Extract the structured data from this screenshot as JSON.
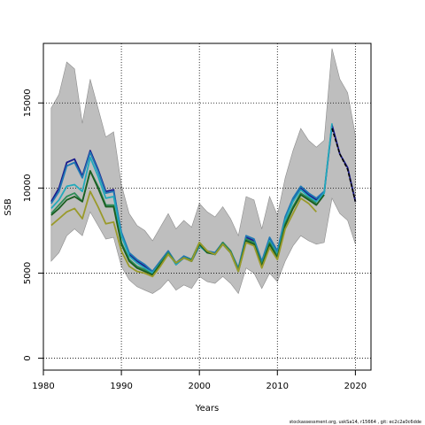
{
  "chart_data": {
    "type": "line",
    "xlabel": "Years",
    "ylabel": "SSB",
    "xlim": [
      1980,
      2022
    ],
    "ylim": [
      -700,
      18500
    ],
    "x_ticks": [
      1980,
      1990,
      2000,
      2010,
      2020
    ],
    "y_ticks": [
      0,
      5000,
      10000,
      15000
    ],
    "grid": "dotted",
    "footer": "stockassessment.org, uskSa14, r15664 , git: ec2c2a0c6dde",
    "band": {
      "color": "#bebebe",
      "x": [
        1981,
        1982,
        1983,
        1984,
        1985,
        1986,
        1987,
        1988,
        1989,
        1990,
        1991,
        1992,
        1993,
        1994,
        1995,
        1996,
        1997,
        1998,
        1999,
        2000,
        2001,
        2002,
        2003,
        2004,
        2005,
        2006,
        2007,
        2008,
        2009,
        2010,
        2011,
        2012,
        2013,
        2014,
        2015,
        2016,
        2017,
        2018,
        2019,
        2020
      ],
      "lower": [
        5700,
        6200,
        7200,
        7600,
        7200,
        8600,
        7800,
        7000,
        7100,
        5400,
        4600,
        4200,
        4000,
        3800,
        4100,
        4600,
        4000,
        4300,
        4100,
        4800,
        4500,
        4400,
        4800,
        4400,
        3800,
        5300,
        5000,
        4100,
        5000,
        4500,
        5700,
        6600,
        7200,
        6900,
        6700,
        6800,
        9400,
        8500,
        8100,
        6700
      ],
      "upper": [
        14700,
        15500,
        17400,
        17000,
        13800,
        16400,
        14700,
        13000,
        13300,
        10200,
        8500,
        7800,
        7500,
        6900,
        7700,
        8500,
        7600,
        8100,
        7700,
        9100,
        8600,
        8300,
        8900,
        8200,
        7200,
        9500,
        9300,
        7600,
        9500,
        8400,
        10600,
        12200,
        13500,
        12800,
        12400,
        12800,
        18200,
        16400,
        15600,
        13100
      ]
    },
    "series": [
      {
        "color": "#1c1c8c",
        "x": [
          1981,
          1982,
          1983,
          1984,
          1985,
          1986,
          1987,
          1988,
          1989,
          1990,
          1991,
          1992,
          1993,
          1994,
          1995,
          1996,
          1997,
          1998,
          1999,
          2000,
          2001,
          2002,
          2003,
          2004,
          2005,
          2006,
          2007,
          2008,
          2009,
          2010,
          2011,
          2012,
          2013,
          2014,
          2015,
          2016,
          2017,
          2018,
          2019,
          2020
        ],
        "values": [
          9200,
          10000,
          11500,
          11700,
          10700,
          12200,
          11100,
          9800,
          9900,
          7200,
          6100,
          5700,
          5400,
          5100,
          5700,
          6300,
          5500,
          5900,
          5700,
          6600,
          6300,
          6100,
          6800,
          6300,
          5200,
          7100,
          6900,
          5600,
          7000,
          6100,
          8100,
          9300,
          10000,
          9600,
          9300,
          9700,
          13700,
          12000,
          11200,
          9200
        ]
      },
      {
        "color": "#1f78b4",
        "x": [
          1981,
          1982,
          1983,
          1984,
          1985,
          1986,
          1987,
          1988,
          1989,
          1990,
          1991,
          1992,
          1993,
          1994,
          1995,
          1996,
          1997,
          1998,
          1999,
          2000,
          2001,
          2002,
          2003,
          2004,
          2005,
          2006,
          2007,
          2008,
          2009,
          2010,
          2011,
          2012,
          2013,
          2014,
          2015,
          2016
        ],
        "values": [
          9100,
          9800,
          11300,
          11500,
          10600,
          12100,
          11000,
          9700,
          9800,
          7400,
          6200,
          5800,
          5500,
          5100,
          5700,
          6300,
          5600,
          6000,
          5800,
          6700,
          6300,
          6200,
          6800,
          6300,
          5300,
          7200,
          7000,
          5700,
          7100,
          6300,
          8300,
          9400,
          10100,
          9700,
          9400,
          9800
        ]
      },
      {
        "color": "#22aabb",
        "x": [
          1981,
          1982,
          1983,
          1984,
          1985,
          1986,
          1987,
          1988,
          1989,
          1990,
          1991,
          1992,
          1993,
          1994,
          1995,
          1996,
          1997,
          1998,
          1999,
          2000,
          2001,
          2002,
          2003,
          2004,
          2005,
          2006,
          2007,
          2008,
          2009,
          2010,
          2011,
          2012,
          2013,
          2014,
          2015,
          2016,
          2017
        ],
        "values": [
          8800,
          9300,
          10100,
          10200,
          9800,
          11800,
          10700,
          9400,
          9500,
          7200,
          6000,
          5600,
          5300,
          5000,
          5600,
          6200,
          5500,
          5900,
          5700,
          6600,
          6200,
          6100,
          6700,
          6200,
          5200,
          7000,
          6800,
          5500,
          6900,
          6100,
          8100,
          9200,
          9900,
          9500,
          9200,
          9700,
          13800
        ]
      },
      {
        "color": "#2e8b57",
        "x": [
          1981,
          1982,
          1983,
          1984,
          1985,
          1986,
          1987,
          1988,
          1989,
          1990,
          1991,
          1992,
          1993,
          1994,
          1995,
          1996,
          1997,
          1998,
          1999,
          2000,
          2001,
          2002,
          2003,
          2004,
          2005,
          2006,
          2007,
          2008,
          2009,
          2010,
          2011,
          2012,
          2013,
          2014,
          2015
        ],
        "values": [
          8500,
          9000,
          9500,
          9700,
          9200,
          11000,
          10100,
          9000,
          9000,
          6800,
          5800,
          5400,
          5200,
          4900,
          5600,
          6200,
          5600,
          5900,
          5800,
          6800,
          6300,
          6100,
          6800,
          6300,
          5200,
          7000,
          6800,
          5500,
          6800,
          6000,
          7900,
          8900,
          9700,
          9400,
          9100
        ]
      },
      {
        "color": "#1b5e20",
        "x": [
          1981,
          1982,
          1983,
          1984,
          1985,
          1986,
          1987,
          1988,
          1989,
          1990,
          1991,
          1992,
          1993,
          1994,
          1995,
          1996,
          1997,
          1998,
          1999,
          2000,
          2001,
          2002,
          2003,
          2004,
          2005,
          2006,
          2007,
          2008,
          2009,
          2010,
          2011,
          2012,
          2013,
          2014,
          2015,
          2016
        ],
        "values": [
          8400,
          8800,
          9300,
          9500,
          9200,
          11000,
          10000,
          8900,
          8900,
          6700,
          5700,
          5300,
          5100,
          4900,
          5500,
          6100,
          5600,
          5900,
          5700,
          6700,
          6200,
          6100,
          6700,
          6200,
          5100,
          6900,
          6700,
          5400,
          6700,
          5900,
          7800,
          8800,
          9600,
          9300,
          9000,
          9600
        ]
      },
      {
        "color": "#9a9a2a",
        "x": [
          1981,
          1982,
          1983,
          1984,
          1985,
          1986,
          1987,
          1988,
          1989,
          1990,
          1991,
          1992,
          1993,
          1994,
          1995,
          1996,
          1997,
          1998,
          1999,
          2000,
          2001,
          2002,
          2003,
          2004,
          2005,
          2006,
          2007,
          2008,
          2009,
          2010,
          2011,
          2012,
          2013,
          2014,
          2015
        ],
        "values": [
          7800,
          8200,
          8600,
          8800,
          8200,
          9800,
          8900,
          7900,
          8000,
          6300,
          5400,
          5100,
          5000,
          4800,
          5400,
          6100,
          5600,
          5900,
          5700,
          6800,
          6300,
          6100,
          6700,
          6200,
          5100,
          6800,
          6600,
          5300,
          6500,
          5800,
          7600,
          8500,
          9400,
          9100,
          8600
        ]
      },
      {
        "color": "#000000",
        "dashed": true,
        "x": [
          2017,
          2018,
          2019,
          2020
        ],
        "values": [
          13500,
          12000,
          11100,
          9200
        ]
      }
    ]
  }
}
